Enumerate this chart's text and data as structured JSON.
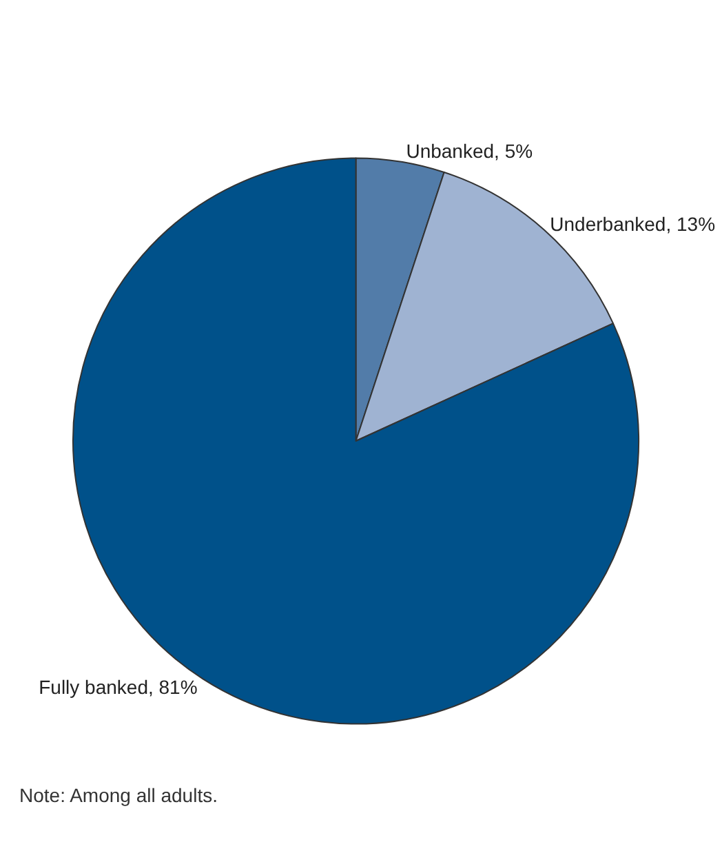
{
  "chart_data": {
    "type": "pie",
    "categories": [
      "Unbanked",
      "Underbanked",
      "Fully banked"
    ],
    "values": [
      5,
      13,
      81
    ],
    "value_labels": [
      "5%",
      "13%",
      "81%"
    ],
    "colors": [
      "#527ca9",
      "#9fb3d2",
      "#00518a"
    ],
    "legend": false,
    "annotations": [
      "Note: Among all adults."
    ]
  }
}
